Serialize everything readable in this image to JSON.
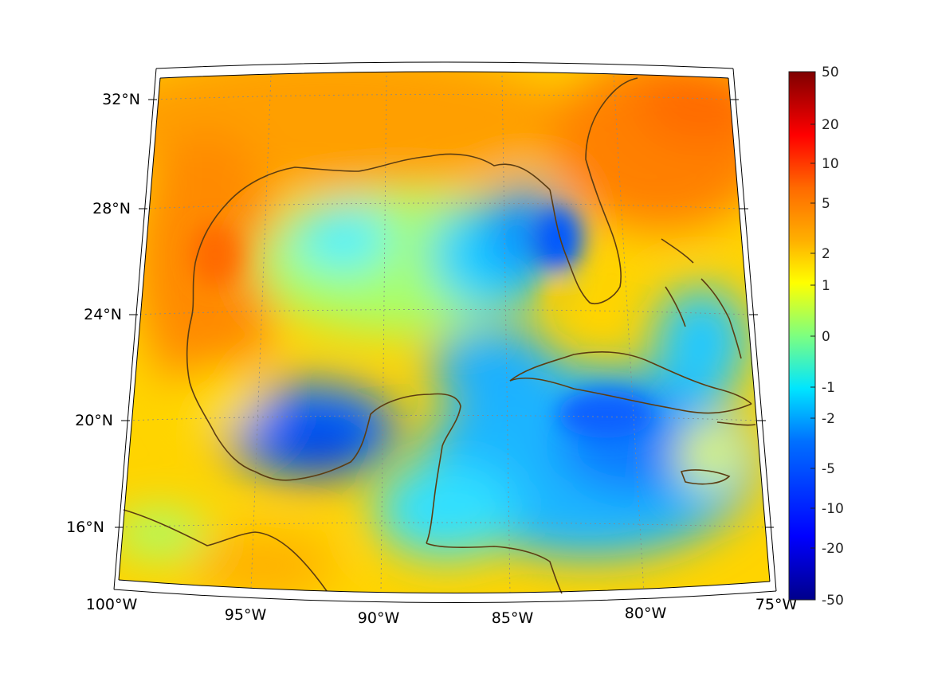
{
  "map": {
    "projection": "lambert-conic",
    "lon_range": [
      "100°W",
      "75°W"
    ],
    "lat_range": [
      "14°N",
      "33°N"
    ],
    "lon_labels": [
      "100°W",
      "95°W",
      "90°W",
      "85°W",
      "80°W",
      "75°W"
    ],
    "lat_labels": [
      "32°N",
      "28°N",
      "24°N",
      "20°N",
      "16°N"
    ],
    "coastline_color": "#5c3d12",
    "graticule": "dotted"
  },
  "colorbar": {
    "colormap": "jet",
    "scale": "nonlinear (symmetric log-like)",
    "tick_labels": [
      "50",
      "20",
      "10",
      "5",
      "2",
      "1",
      "0",
      "-1",
      "-2",
      "-5",
      "-10",
      "-20",
      "-50"
    ],
    "colors": {
      "top": "#800000",
      "high": "#ff0000",
      "mid_high": "#ff8c00",
      "mid": "#ffff00",
      "zero": "#7fff7f",
      "mid_low": "#00ffff",
      "low": "#0060ff",
      "bottom": "#00008b"
    }
  },
  "fields": {
    "gulf_of_mexico_west": "orange (≈2 to 5)",
    "bay_of_campeche": "dark blue (≈-5 to -10)",
    "eastern_gulf": "blue (≈-2 to -5)",
    "caribbean": "cyan-blue (≈-1 to -5)",
    "southeast_us": "orange (≈2 to 5)"
  }
}
